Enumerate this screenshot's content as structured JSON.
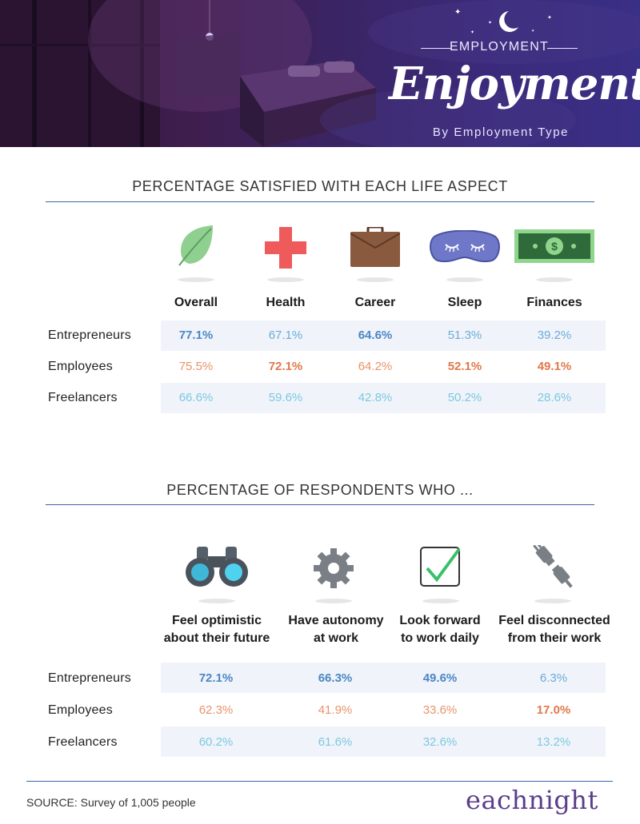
{
  "header": {
    "eyebrow": "EMPLOYMENT",
    "title": "Enjoyment",
    "subtitle": "By Employment Type"
  },
  "section1": {
    "title": "PERCENTAGE SATISFIED WITH EACH LIFE ASPECT",
    "columns": [
      {
        "label": "Overall",
        "icon": "leaf-icon"
      },
      {
        "label": "Health",
        "icon": "medical-cross-icon"
      },
      {
        "label": "Career",
        "icon": "briefcase-icon"
      },
      {
        "label": "Sleep",
        "icon": "sleep-mask-icon"
      },
      {
        "label": "Finances",
        "icon": "dollar-bill-icon"
      }
    ],
    "rows": [
      {
        "label": "Entrepreneurs",
        "values": [
          "77.1%",
          "67.1%",
          "64.6%",
          "51.3%",
          "39.2%"
        ]
      },
      {
        "label": "Employees",
        "values": [
          "75.5%",
          "72.1%",
          "64.2%",
          "52.1%",
          "49.1%"
        ]
      },
      {
        "label": "Freelancers",
        "values": [
          "66.6%",
          "59.6%",
          "42.8%",
          "50.2%",
          "28.6%"
        ]
      }
    ]
  },
  "section2": {
    "title": "PERCENTAGE OF RESPONDENTS WHO ...",
    "columns": [
      {
        "line1": "Feel optimistic",
        "line2": "about their future",
        "icon": "binoculars-icon"
      },
      {
        "line1": "Have autonomy",
        "line2": "at work",
        "icon": "gear-icon"
      },
      {
        "line1": "Look forward",
        "line2": "to work daily",
        "icon": "checkbox-icon"
      },
      {
        "line1": "Feel disconnected",
        "line2": "from their work",
        "icon": "unplugged-icon"
      }
    ],
    "rows": [
      {
        "label": "Entrepreneurs",
        "values": [
          "72.1%",
          "66.3%",
          "49.6%",
          "6.3%"
        ]
      },
      {
        "label": "Employees",
        "values": [
          "62.3%",
          "41.9%",
          "33.6%",
          "17.0%"
        ]
      },
      {
        "label": "Freelancers",
        "values": [
          "60.2%",
          "61.6%",
          "32.6%",
          "13.2%"
        ]
      }
    ]
  },
  "footer": {
    "source": "SOURCE: Survey of 1,005 people",
    "brand": "eachnight"
  },
  "colors": {
    "rule": "#3e63a8",
    "blue": "#4b86c4",
    "orange": "#e0784a",
    "cyan": "#7cc8df",
    "row_bg": "#f0f4fa"
  }
}
